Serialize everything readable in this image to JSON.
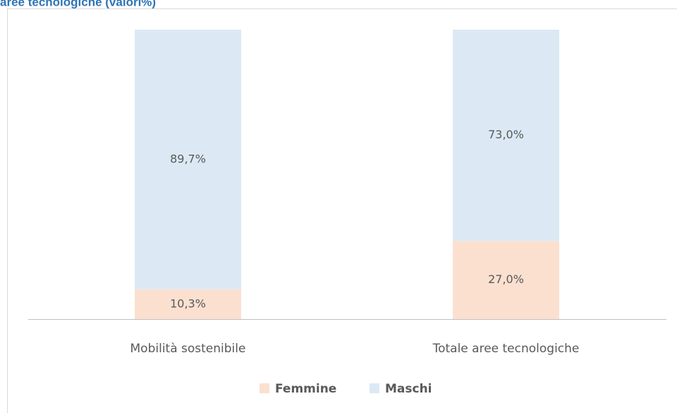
{
  "chart_data": {
    "type": "stacked_bar",
    "title": "aree tecnologiche (valori%)",
    "categories": [
      "Mobilità sostenibile",
      "Totale aree tecnologiche"
    ],
    "series": [
      {
        "name": "Femmine",
        "color": "#fbe0d0",
        "values": [
          10.3,
          27.0
        ],
        "value_labels": [
          "10,3%",
          "27,0%"
        ]
      },
      {
        "name": "Maschi",
        "color": "#dce9f5",
        "values": [
          89.7,
          73.0
        ],
        "value_labels": [
          "89,7%",
          "73,0%"
        ]
      }
    ],
    "ylim": [
      0,
      100
    ],
    "legend": "bottom"
  }
}
